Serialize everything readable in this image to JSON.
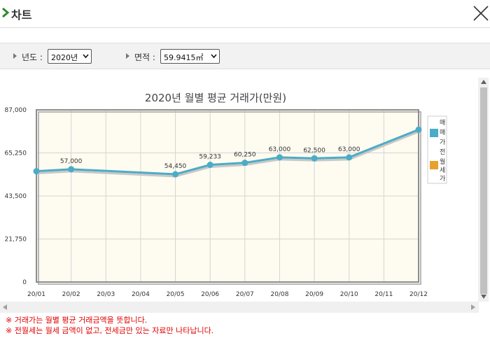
{
  "window": {
    "title": "차트"
  },
  "filters": {
    "year_label": "년도 :",
    "year_value": "2020년",
    "area_label": "면적 :",
    "area_value": "59.9415㎡"
  },
  "legend": {
    "item1_lines": [
      "매",
      "매",
      "가"
    ],
    "item2_lines": [
      "전",
      "월",
      "세",
      "가"
    ],
    "item1_color": "#4bacc6",
    "item2_color": "#e8a02d"
  },
  "colors": {
    "plot_bg": "#fefbf0",
    "line": "#4bacc6",
    "notes": "#e00000"
  },
  "chart_data": {
    "type": "line",
    "title": "2020년 월별 평균 거래가(만원)",
    "categories": [
      "20/01",
      "20/02",
      "20/03",
      "20/04",
      "20/05",
      "20/06",
      "20/07",
      "20/08",
      "20/09",
      "20/10",
      "20/11",
      "20/12"
    ],
    "y_ticks": [
      "87,000",
      "65,250",
      "43,500",
      "21,750",
      "0"
    ],
    "ylim": [
      0,
      87000
    ],
    "grid": true,
    "series": [
      {
        "name": "매매가",
        "points": [
          {
            "x": "20/01",
            "y": 56000,
            "label": ""
          },
          {
            "x": "20/02",
            "y": 57000,
            "label": "57,000"
          },
          {
            "x": "20/05",
            "y": 54450,
            "label": "54,450"
          },
          {
            "x": "20/06",
            "y": 59233,
            "label": "59,233"
          },
          {
            "x": "20/07",
            "y": 60250,
            "label": "60,250"
          },
          {
            "x": "20/08",
            "y": 63000,
            "label": "63,000"
          },
          {
            "x": "20/09",
            "y": 62500,
            "label": "62,500"
          },
          {
            "x": "20/10",
            "y": 63000,
            "label": "63,000"
          },
          {
            "x": "20/12",
            "y": 77000,
            "label": ""
          }
        ]
      }
    ]
  },
  "notes": [
    "※ 거래가는 월별 평균 거래금액을 뜻합니다.",
    "※ 전월세는 월세 금액이 없고, 전세금만 있는 자료만 나타납니다."
  ]
}
